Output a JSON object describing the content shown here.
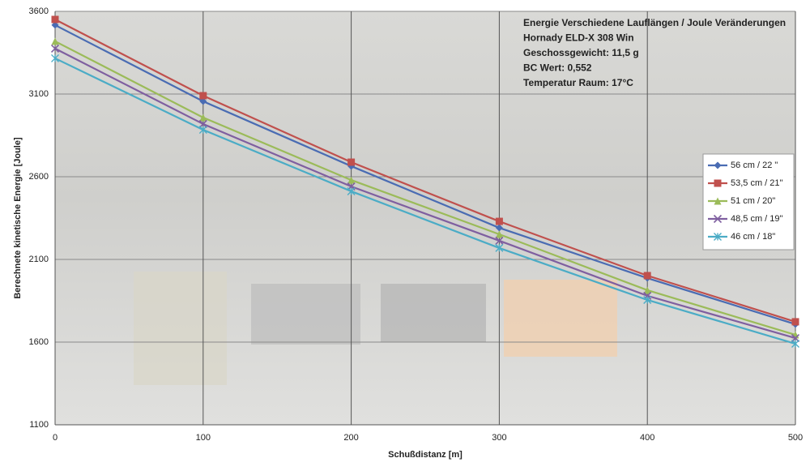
{
  "chart_data": {
    "type": "line",
    "annotations": [
      "Energie Verschiedene Lauflängen / Joule Veränderungen",
      "Hornady ELD-X 308 Win",
      "Geschossgewicht: 11,5 g",
      "BC Wert: 0,552",
      "Temperatur Raum: 17°C"
    ],
    "xlabel": "Schußdistanz [m]",
    "ylabel": "Berechnete kinetische Energie [Joule]",
    "x": [
      0,
      100,
      200,
      300,
      400,
      500
    ],
    "xlim": [
      0,
      500
    ],
    "xticks": [
      0,
      100,
      200,
      300,
      400,
      500
    ],
    "ylim": [
      1100,
      3600
    ],
    "yticks": [
      1100,
      1600,
      2100,
      2600,
      3100,
      3600
    ],
    "grid": true,
    "legend": "right",
    "series": [
      {
        "name": "56 cm / 22 \"",
        "color": "#4a6cb3",
        "marker": "diamond",
        "values": [
          3517,
          3056,
          2664,
          2291,
          1987,
          1708
        ]
      },
      {
        "name": "53,5 cm / 21\"",
        "color": "#c0504d",
        "marker": "square",
        "values": [
          3551,
          3090,
          2688,
          2330,
          2002,
          1723
        ]
      },
      {
        "name": "51 cm / 20\"",
        "color": "#9bbb59",
        "marker": "triangle",
        "values": [
          3419,
          2958,
          2580,
          2252,
          1914,
          1644
        ]
      },
      {
        "name": "48,5 cm / 19\"",
        "color": "#7f5fa0",
        "marker": "x",
        "values": [
          3375,
          2919,
          2541,
          2213,
          1880,
          1624
        ]
      },
      {
        "name": "46 cm / 18\"",
        "color": "#4bacc6",
        "marker": "star",
        "values": [
          3316,
          2884,
          2512,
          2169,
          1855,
          1590
        ]
      }
    ]
  }
}
